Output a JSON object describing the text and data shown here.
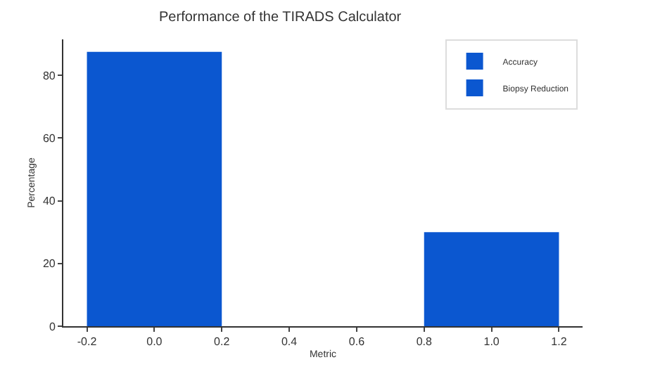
{
  "chart_data": {
    "type": "bar",
    "title": "Performance of the TIRADS Calculator",
    "xlabel": "Metric",
    "ylabel": "Percentage",
    "series": [
      {
        "name": "Accuracy",
        "color": "#0b57d0",
        "x": [
          0
        ],
        "values": [
          87.5
        ]
      },
      {
        "name": "Biopsy Reduction",
        "color": "#0b57d0",
        "x": [
          1
        ],
        "values": [
          30
        ]
      }
    ],
    "xlim": [
      -0.27,
      1.27
    ],
    "xticks": [
      {
        "value": -0.2,
        "label": "-0.2"
      },
      {
        "value": 0,
        "label": "0.0"
      },
      {
        "value": 0.2,
        "label": "0.2"
      },
      {
        "value": 0.4,
        "label": "0.4"
      },
      {
        "value": 0.6,
        "label": "0.6"
      },
      {
        "value": 0.8,
        "label": "0.8"
      },
      {
        "value": 1,
        "label": "1.0"
      },
      {
        "value": 1.2,
        "label": "1.2"
      }
    ],
    "ylim": [
      0,
      91.5
    ],
    "yticks": [
      0,
      20,
      40,
      60,
      80
    ],
    "legend": "top right"
  }
}
